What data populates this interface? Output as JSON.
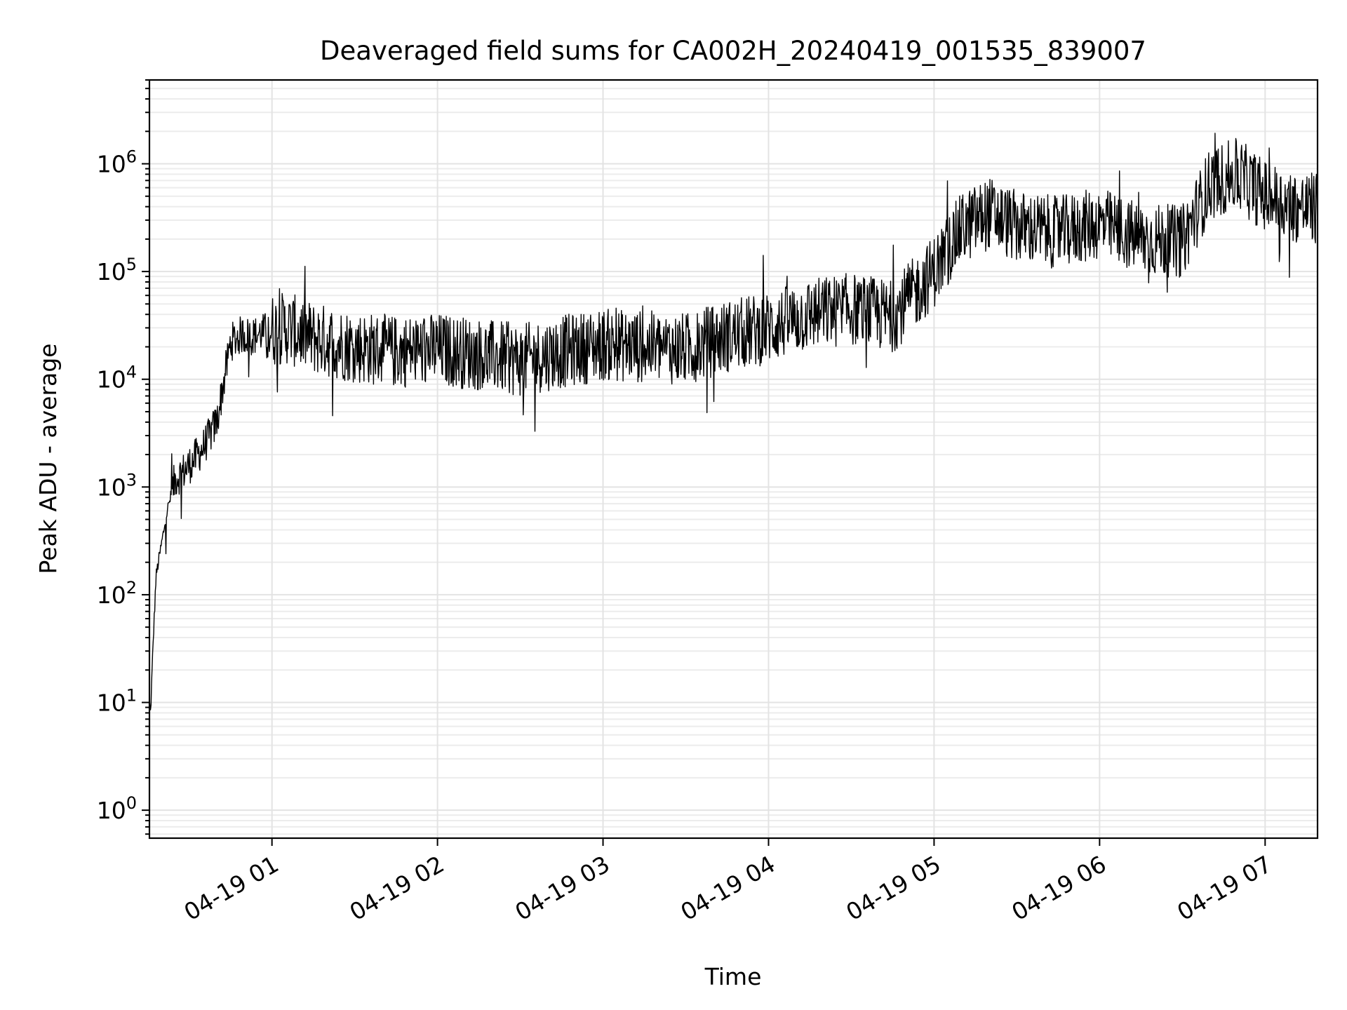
{
  "chart_data": {
    "type": "line",
    "title": "Deaveraged field sums for CA002H_20240419_001535_839007",
    "xlabel": "Time",
    "ylabel": "Peak ADU - average",
    "yscale": "log",
    "xlim": [
      "2024-04-19T00:15:35",
      "2024-04-19T07:19:00"
    ],
    "ylim": [
      0.55,
      6000000
    ],
    "grid": true,
    "x_ticks": [
      {
        "value": "2024-04-19T01:00:00",
        "label": "04-19 01"
      },
      {
        "value": "2024-04-19T02:00:00",
        "label": "04-19 02"
      },
      {
        "value": "2024-04-19T03:00:00",
        "label": "04-19 03"
      },
      {
        "value": "2024-04-19T04:00:00",
        "label": "04-19 04"
      },
      {
        "value": "2024-04-19T05:00:00",
        "label": "04-19 05"
      },
      {
        "value": "2024-04-19T06:00:00",
        "label": "04-19 06"
      },
      {
        "value": "2024-04-19T07:00:00",
        "label": "04-19 07"
      }
    ],
    "y_ticks": [
      {
        "value": 1,
        "base": "10",
        "exp": "0"
      },
      {
        "value": 10,
        "base": "10",
        "exp": "1"
      },
      {
        "value": 100,
        "base": "10",
        "exp": "2"
      },
      {
        "value": 1000,
        "base": "10",
        "exp": "3"
      },
      {
        "value": 10000,
        "base": "10",
        "exp": "4"
      },
      {
        "value": 100000,
        "base": "10",
        "exp": "5"
      },
      {
        "value": 1000000,
        "base": "10",
        "exp": "6"
      }
    ],
    "series": [
      {
        "color": "#000000",
        "x": [
          "2024-04-19T00:15:35",
          "2024-04-19T00:16:00",
          "2024-04-19T00:17:00",
          "2024-04-19T00:18:00",
          "2024-04-19T00:20:00",
          "2024-04-19T00:22:00",
          "2024-04-19T00:25:00",
          "2024-04-19T00:28:00",
          "2024-04-19T00:31:00",
          "2024-04-19T00:35:00",
          "2024-04-19T00:40:00",
          "2024-04-19T00:45:00",
          "2024-04-19T00:49:00",
          "2024-04-19T00:53:00",
          "2024-04-19T00:58:00",
          "2024-04-19T01:05:00",
          "2024-04-19T01:15:00",
          "2024-04-19T01:30:00",
          "2024-04-19T01:45:00",
          "2024-04-19T02:00:00",
          "2024-04-19T02:15:00",
          "2024-04-19T02:30:00",
          "2024-04-19T02:45:00",
          "2024-04-19T03:00:00",
          "2024-04-19T03:15:00",
          "2024-04-19T03:30:00",
          "2024-04-19T03:45:00",
          "2024-04-19T04:00:00",
          "2024-04-19T04:15:00",
          "2024-04-19T04:30:00",
          "2024-04-19T04:45:00",
          "2024-04-19T05:00:00",
          "2024-04-19T05:10:00",
          "2024-04-19T05:20:00",
          "2024-04-19T05:30:00",
          "2024-04-19T05:45:00",
          "2024-04-19T06:00:00",
          "2024-04-19T06:15:00",
          "2024-04-19T06:30:00",
          "2024-04-19T06:40:00",
          "2024-04-19T06:50:00",
          "2024-04-19T07:00:00",
          "2024-04-19T07:10:00",
          "2024-04-19T07:19:00"
        ],
        "y": [
          10,
          8,
          40,
          150,
          300,
          600,
          1200,
          1400,
          1700,
          2300,
          4000,
          22000,
          26000,
          25000,
          28000,
          30000,
          24000,
          20000,
          18000,
          19000,
          17000,
          15000,
          18000,
          21000,
          20000,
          19000,
          25000,
          30000,
          40000,
          45000,
          38000,
          100000,
          250000,
          350000,
          260000,
          230000,
          280000,
          200000,
          190000,
          650000,
          800000,
          500000,
          400000,
          380000
        ]
      }
    ]
  }
}
